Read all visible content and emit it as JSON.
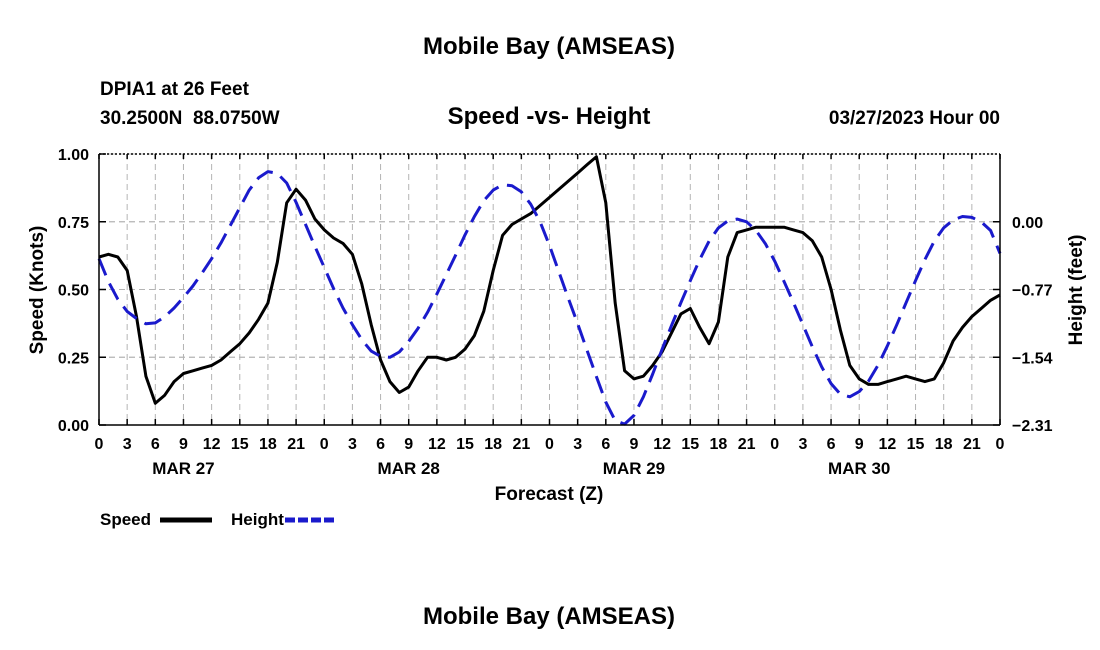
{
  "header": {
    "title": "Mobile Bay (AMSEAS)",
    "station_line": "DPIA1 at 26 Feet",
    "coords_line": "30.2500N  88.0750W",
    "datetime_line": "03/27/2023 Hour 00",
    "footer_title": "Mobile Bay (AMSEAS)"
  },
  "chart_data": {
    "type": "line",
    "title": "Speed -vs- Height",
    "xlabel": "Forecast (Z)",
    "ylabel": "Speed (Knots)",
    "y2label": "Height (feet)",
    "xlim": [
      0,
      96
    ],
    "ylim": [
      0,
      1
    ],
    "y2lim": [
      -2.31,
      0.77
    ],
    "x_ticks": [
      0,
      3,
      6,
      9,
      12,
      15,
      18,
      21,
      24,
      27,
      30,
      33,
      36,
      39,
      42,
      45,
      48,
      51,
      54,
      57,
      60,
      63,
      66,
      69,
      72,
      75,
      78,
      81,
      84,
      87,
      90,
      93,
      96
    ],
    "x_tick_labels": [
      "0",
      "3",
      "6",
      "9",
      "12",
      "15",
      "18",
      "21",
      "0",
      "3",
      "6",
      "9",
      "12",
      "15",
      "18",
      "21",
      "0",
      "3",
      "6",
      "9",
      "12",
      "15",
      "18",
      "21",
      "0",
      "3",
      "6",
      "9",
      "12",
      "15",
      "18",
      "21",
      "0"
    ],
    "date_labels": [
      {
        "x": 9,
        "label": "MAR 27"
      },
      {
        "x": 33,
        "label": "MAR 28"
      },
      {
        "x": 57,
        "label": "MAR 29"
      },
      {
        "x": 81,
        "label": "MAR 30"
      }
    ],
    "y_ticks": [
      0,
      0.25,
      0.5,
      0.75,
      1.0
    ],
    "y_tick_labels": [
      "0.00",
      "0.25",
      "0.50",
      "0.75",
      "1.00"
    ],
    "y2_ticks": [
      0.0,
      -0.77,
      -1.54,
      -2.31
    ],
    "y2_tick_labels": [
      "0.00",
      "−0.77",
      "−1.54",
      "−2.31"
    ],
    "series": [
      {
        "name": "Speed",
        "axis": "left",
        "color": "#000000",
        "dash": "solid",
        "x": [
          0,
          1,
          2,
          3,
          4,
          5,
          6,
          7,
          8,
          9,
          10,
          11,
          12,
          13,
          14,
          15,
          16,
          17,
          18,
          19,
          20,
          21,
          22,
          23,
          24,
          25,
          26,
          27,
          28,
          29,
          30,
          31,
          32,
          33,
          34,
          35,
          36,
          37,
          38,
          39,
          40,
          41,
          42,
          43,
          44,
          45,
          46,
          47,
          48,
          49,
          50,
          51,
          52,
          53,
          54,
          55,
          56,
          57,
          58,
          59,
          60,
          61,
          62,
          63,
          64,
          65,
          66,
          67,
          68,
          69,
          70,
          71,
          72,
          73,
          74,
          75,
          76,
          77,
          78,
          79,
          80,
          81,
          82,
          83,
          84,
          85,
          86,
          87,
          88,
          89,
          90,
          91,
          92,
          93,
          94,
          95,
          96
        ],
        "values": [
          0.62,
          0.63,
          0.62,
          0.57,
          0.4,
          0.18,
          0.08,
          0.11,
          0.16,
          0.19,
          0.2,
          0.21,
          0.22,
          0.24,
          0.27,
          0.3,
          0.34,
          0.39,
          0.45,
          0.6,
          0.82,
          0.87,
          0.83,
          0.76,
          0.72,
          0.69,
          0.67,
          0.63,
          0.52,
          0.37,
          0.24,
          0.16,
          0.12,
          0.14,
          0.2,
          0.25,
          0.25,
          0.24,
          0.25,
          0.28,
          0.33,
          0.42,
          0.57,
          0.7,
          0.74,
          0.76,
          0.78,
          0.81,
          0.84,
          0.87,
          0.9,
          0.93,
          0.96,
          0.99,
          0.82,
          0.45,
          0.2,
          0.17,
          0.18,
          0.22,
          0.27,
          0.34,
          0.41,
          0.43,
          0.36,
          0.3,
          0.38,
          0.62,
          0.71,
          0.72,
          0.73,
          0.73,
          0.73,
          0.73,
          0.72,
          0.71,
          0.68,
          0.62,
          0.5,
          0.35,
          0.22,
          0.17,
          0.15,
          0.15,
          0.16,
          0.17,
          0.18,
          0.17,
          0.16,
          0.17,
          0.23,
          0.31,
          0.36,
          0.4,
          0.43,
          0.46,
          0.48
        ]
      },
      {
        "name": "Height",
        "axis": "right",
        "color": "#1a1acc",
        "dash": "dashed",
        "x": [
          0,
          1,
          2,
          3,
          4,
          5,
          6,
          7,
          8,
          9,
          10,
          11,
          12,
          13,
          14,
          15,
          16,
          17,
          18,
          19,
          20,
          21,
          22,
          23,
          24,
          25,
          26,
          27,
          28,
          29,
          30,
          31,
          32,
          33,
          34,
          35,
          36,
          37,
          38,
          39,
          40,
          41,
          42,
          43,
          44,
          45,
          46,
          47,
          48,
          49,
          50,
          51,
          52,
          53,
          54,
          55,
          56,
          57,
          58,
          59,
          60,
          61,
          62,
          63,
          64,
          65,
          66,
          67,
          68,
          69,
          70,
          71,
          72,
          73,
          74,
          75,
          76,
          77,
          78,
          79,
          80,
          81,
          82,
          83,
          84,
          85,
          86,
          87,
          88,
          89,
          90,
          91,
          92,
          93,
          94,
          95,
          96
        ],
        "values": [
          -0.42,
          -0.68,
          -0.88,
          -1.02,
          -1.1,
          -1.16,
          -1.15,
          -1.08,
          -0.98,
          -0.86,
          -0.73,
          -0.58,
          -0.42,
          -0.24,
          -0.04,
          0.16,
          0.36,
          0.5,
          0.57,
          0.55,
          0.44,
          0.22,
          -0.03,
          -0.28,
          -0.52,
          -0.76,
          -0.98,
          -1.17,
          -1.34,
          -1.47,
          -1.53,
          -1.54,
          -1.48,
          -1.36,
          -1.21,
          -1.03,
          -0.82,
          -0.6,
          -0.38,
          -0.15,
          0.06,
          0.24,
          0.36,
          0.42,
          0.41,
          0.34,
          0.2,
          0.0,
          -0.27,
          -0.57,
          -0.87,
          -1.16,
          -1.46,
          -1.76,
          -2.05,
          -2.26,
          -2.3,
          -2.2,
          -1.99,
          -1.73,
          -1.45,
          -1.18,
          -0.92,
          -0.67,
          -0.43,
          -0.22,
          -0.07,
          0.01,
          0.03,
          0.0,
          -0.1,
          -0.25,
          -0.45,
          -0.68,
          -0.92,
          -1.17,
          -1.42,
          -1.65,
          -1.84,
          -1.96,
          -1.99,
          -1.93,
          -1.81,
          -1.63,
          -1.41,
          -1.17,
          -0.92,
          -0.67,
          -0.43,
          -0.22,
          -0.07,
          0.02,
          0.06,
          0.05,
          0.0,
          -0.1,
          -0.36
        ]
      }
    ],
    "legend": [
      {
        "label": "Speed",
        "color": "#000000",
        "dash": "solid"
      },
      {
        "label": "Height",
        "color": "#1a1acc",
        "dash": "dashed"
      }
    ],
    "legend_placement": "bottom-left",
    "grid": true
  }
}
